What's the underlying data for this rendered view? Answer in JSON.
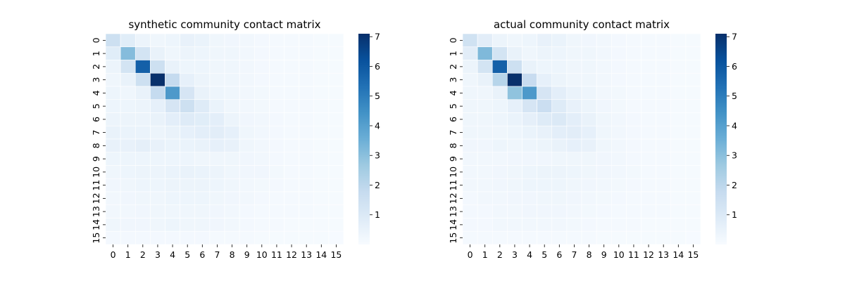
{
  "chart_data": [
    {
      "type": "heatmap",
      "title": "synthetic community contact matrix",
      "xlabel": "",
      "ylabel": "",
      "x_categories": [
        "0",
        "1",
        "2",
        "3",
        "4",
        "5",
        "6",
        "7",
        "8",
        "9",
        "10",
        "11",
        "12",
        "13",
        "14",
        "15"
      ],
      "y_categories": [
        "0",
        "1",
        "2",
        "3",
        "4",
        "5",
        "6",
        "7",
        "8",
        "9",
        "10",
        "11",
        "12",
        "13",
        "14",
        "15"
      ],
      "colormap": "Blues",
      "vmin": 0,
      "vmax": 7.1,
      "colorbar_ticks": [
        1,
        2,
        3,
        4,
        5,
        6,
        7
      ],
      "values": [
        [
          1.5,
          0.8,
          0.4,
          0.3,
          0.35,
          0.55,
          0.45,
          0.3,
          0.25,
          0.2,
          0.15,
          0.1,
          0.1,
          0.1,
          0.08,
          0.06
        ],
        [
          0.8,
          3.1,
          1.3,
          0.5,
          0.3,
          0.4,
          0.35,
          0.3,
          0.3,
          0.2,
          0.15,
          0.12,
          0.1,
          0.1,
          0.08,
          0.06
        ],
        [
          0.4,
          1.3,
          5.8,
          1.5,
          0.5,
          0.35,
          0.35,
          0.3,
          0.3,
          0.2,
          0.15,
          0.12,
          0.1,
          0.1,
          0.08,
          0.06
        ],
        [
          0.3,
          0.5,
          1.5,
          7.1,
          1.8,
          0.6,
          0.4,
          0.3,
          0.3,
          0.2,
          0.15,
          0.12,
          0.1,
          0.1,
          0.08,
          0.06
        ],
        [
          0.35,
          0.3,
          0.5,
          1.8,
          4.2,
          1.2,
          0.5,
          0.35,
          0.3,
          0.2,
          0.18,
          0.12,
          0.1,
          0.1,
          0.08,
          0.06
        ],
        [
          0.35,
          0.35,
          0.4,
          0.6,
          1.2,
          1.5,
          0.9,
          0.45,
          0.3,
          0.2,
          0.18,
          0.12,
          0.1,
          0.1,
          0.08,
          0.06
        ],
        [
          0.4,
          0.4,
          0.4,
          0.5,
          0.7,
          0.9,
          0.8,
          0.7,
          0.4,
          0.25,
          0.2,
          0.15,
          0.12,
          0.1,
          0.08,
          0.06
        ],
        [
          0.5,
          0.45,
          0.45,
          0.4,
          0.5,
          0.6,
          0.7,
          0.75,
          0.6,
          0.3,
          0.2,
          0.15,
          0.12,
          0.1,
          0.08,
          0.06
        ],
        [
          0.55,
          0.55,
          0.65,
          0.55,
          0.45,
          0.45,
          0.5,
          0.6,
          0.55,
          0.3,
          0.22,
          0.15,
          0.12,
          0.1,
          0.08,
          0.06
        ],
        [
          0.35,
          0.35,
          0.35,
          0.35,
          0.35,
          0.35,
          0.3,
          0.3,
          0.3,
          0.25,
          0.2,
          0.15,
          0.12,
          0.1,
          0.08,
          0.06
        ],
        [
          0.3,
          0.35,
          0.4,
          0.4,
          0.45,
          0.5,
          0.45,
          0.4,
          0.3,
          0.25,
          0.25,
          0.18,
          0.12,
          0.1,
          0.08,
          0.06
        ],
        [
          0.25,
          0.3,
          0.35,
          0.35,
          0.4,
          0.4,
          0.4,
          0.35,
          0.3,
          0.2,
          0.18,
          0.15,
          0.12,
          0.1,
          0.08,
          0.06
        ],
        [
          0.2,
          0.25,
          0.3,
          0.3,
          0.35,
          0.35,
          0.35,
          0.3,
          0.25,
          0.2,
          0.15,
          0.12,
          0.12,
          0.1,
          0.08,
          0.06
        ],
        [
          0.2,
          0.2,
          0.25,
          0.3,
          0.3,
          0.3,
          0.3,
          0.25,
          0.2,
          0.15,
          0.12,
          0.1,
          0.1,
          0.1,
          0.08,
          0.06
        ],
        [
          0.3,
          0.25,
          0.25,
          0.3,
          0.35,
          0.3,
          0.3,
          0.25,
          0.2,
          0.15,
          0.12,
          0.1,
          0.08,
          0.08,
          0.08,
          0.06
        ],
        [
          0.15,
          0.15,
          0.15,
          0.15,
          0.15,
          0.15,
          0.15,
          0.12,
          0.1,
          0.1,
          0.08,
          0.08,
          0.06,
          0.06,
          0.06,
          0.05
        ]
      ]
    },
    {
      "type": "heatmap",
      "title": "actual community contact matrix",
      "xlabel": "",
      "ylabel": "",
      "x_categories": [
        "0",
        "1",
        "2",
        "3",
        "4",
        "5",
        "6",
        "7",
        "8",
        "9",
        "10",
        "11",
        "12",
        "13",
        "14",
        "15"
      ],
      "y_categories": [
        "0",
        "1",
        "2",
        "3",
        "4",
        "5",
        "6",
        "7",
        "8",
        "9",
        "10",
        "11",
        "12",
        "13",
        "14",
        "15"
      ],
      "colormap": "Blues",
      "vmin": 0,
      "vmax": 7.1,
      "colorbar_ticks": [
        1,
        2,
        3,
        4,
        5,
        6,
        7
      ],
      "values": [
        [
          1.4,
          0.75,
          0.4,
          0.3,
          0.35,
          0.55,
          0.45,
          0.3,
          0.25,
          0.2,
          0.15,
          0.1,
          0.1,
          0.1,
          0.08,
          0.06
        ],
        [
          0.75,
          3.2,
          1.3,
          0.5,
          0.3,
          0.4,
          0.35,
          0.3,
          0.3,
          0.2,
          0.15,
          0.12,
          0.1,
          0.1,
          0.08,
          0.06
        ],
        [
          0.4,
          1.3,
          5.8,
          1.5,
          0.5,
          0.35,
          0.35,
          0.3,
          0.3,
          0.2,
          0.15,
          0.12,
          0.1,
          0.1,
          0.08,
          0.06
        ],
        [
          0.3,
          0.5,
          2.1,
          7.1,
          1.7,
          0.6,
          0.4,
          0.3,
          0.3,
          0.2,
          0.15,
          0.12,
          0.1,
          0.1,
          0.08,
          0.06
        ],
        [
          0.3,
          0.3,
          0.5,
          2.9,
          4.2,
          1.2,
          0.7,
          0.45,
          0.35,
          0.2,
          0.18,
          0.12,
          0.1,
          0.1,
          0.08,
          0.06
        ],
        [
          0.3,
          0.3,
          0.35,
          0.6,
          1.2,
          1.6,
          0.9,
          0.55,
          0.4,
          0.25,
          0.18,
          0.12,
          0.1,
          0.1,
          0.08,
          0.06
        ],
        [
          0.3,
          0.3,
          0.35,
          0.45,
          0.65,
          0.9,
          1.0,
          0.7,
          0.5,
          0.3,
          0.2,
          0.15,
          0.12,
          0.1,
          0.08,
          0.06
        ],
        [
          0.3,
          0.3,
          0.3,
          0.35,
          0.45,
          0.55,
          0.7,
          0.75,
          0.6,
          0.3,
          0.2,
          0.15,
          0.12,
          0.1,
          0.08,
          0.06
        ],
        [
          0.25,
          0.25,
          0.35,
          0.3,
          0.35,
          0.4,
          0.5,
          0.6,
          0.55,
          0.3,
          0.22,
          0.15,
          0.12,
          0.1,
          0.08,
          0.06
        ],
        [
          0.2,
          0.2,
          0.2,
          0.25,
          0.25,
          0.25,
          0.3,
          0.3,
          0.3,
          0.25,
          0.2,
          0.15,
          0.12,
          0.1,
          0.08,
          0.06
        ],
        [
          0.2,
          0.2,
          0.25,
          0.3,
          0.35,
          0.4,
          0.4,
          0.35,
          0.3,
          0.25,
          0.22,
          0.18,
          0.12,
          0.1,
          0.08,
          0.06
        ],
        [
          0.2,
          0.2,
          0.25,
          0.3,
          0.35,
          0.35,
          0.35,
          0.3,
          0.25,
          0.2,
          0.18,
          0.15,
          0.12,
          0.1,
          0.08,
          0.06
        ],
        [
          0.15,
          0.2,
          0.2,
          0.25,
          0.25,
          0.3,
          0.3,
          0.25,
          0.2,
          0.18,
          0.15,
          0.12,
          0.12,
          0.1,
          0.08,
          0.06
        ],
        [
          0.15,
          0.15,
          0.2,
          0.2,
          0.25,
          0.25,
          0.25,
          0.2,
          0.18,
          0.15,
          0.12,
          0.1,
          0.1,
          0.1,
          0.08,
          0.06
        ],
        [
          0.15,
          0.15,
          0.2,
          0.2,
          0.2,
          0.2,
          0.2,
          0.18,
          0.15,
          0.12,
          0.1,
          0.1,
          0.08,
          0.08,
          0.08,
          0.06
        ],
        [
          0.1,
          0.1,
          0.12,
          0.12,
          0.12,
          0.12,
          0.12,
          0.1,
          0.1,
          0.08,
          0.08,
          0.06,
          0.06,
          0.06,
          0.06,
          0.05
        ]
      ]
    }
  ]
}
